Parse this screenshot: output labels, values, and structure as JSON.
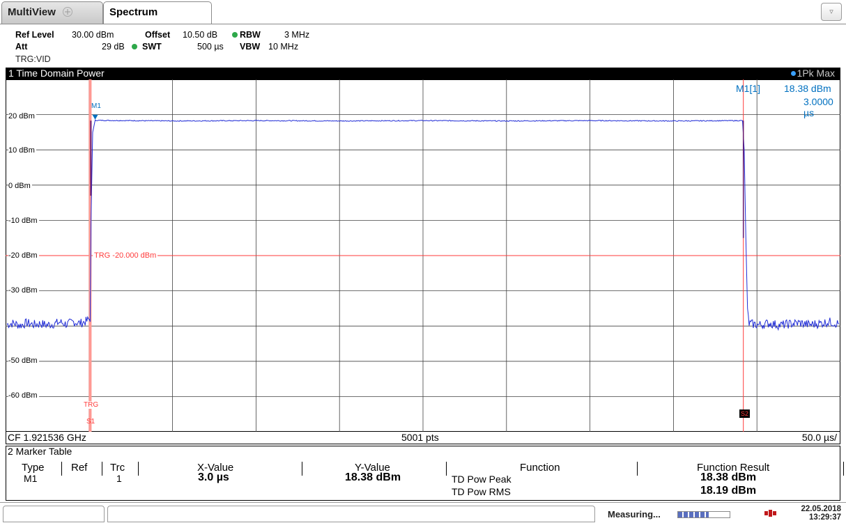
{
  "tabs": [
    {
      "label": "MultiView",
      "icon": "multiview-grid-icon"
    },
    {
      "label": "Spectrum"
    }
  ],
  "dropdown_icon": "triangle-down-icon",
  "settings": {
    "ref_level_label": "Ref Level",
    "ref_level_value": "30.00 dBm",
    "offset_label": "Offset",
    "offset_value": "10.50 dB",
    "rbw_label": "RBW",
    "rbw_value": "3 MHz",
    "att_label": "Att",
    "att_value": "29 dB",
    "swt_label": "SWT",
    "swt_value": "500 µs",
    "vbw_label": "VBW",
    "vbw_value": "10 MHz",
    "trg_label": "TRG:VID"
  },
  "window": {
    "title": "1 Time Domain Power",
    "trace_label": "1Pk Max"
  },
  "marker_readout": {
    "name": "M1[1]",
    "level": "18.38 dBm",
    "time": "3.0000 µs"
  },
  "plot_labels": {
    "m1": "M1",
    "trg_line": "TRG  -20.000 dBm",
    "trg_bottom": "TRG",
    "s1": "S1",
    "s2": "S2"
  },
  "colors": {
    "trace": "#1f2bd6",
    "trigger": "#ff3a3a",
    "marker": "#0070c0",
    "grid": "#404040"
  },
  "chart_data": {
    "type": "line",
    "title": "1 Time Domain Power",
    "xlabel": "",
    "ylabel": "",
    "y_ticks": [
      "20 dBm",
      "10 dBm",
      "0 dBm",
      "-10 dBm",
      "-20 dBm",
      "-30 dBm",
      "-50 dBm",
      "-60 dBm"
    ],
    "ylim": [
      -70,
      30
    ],
    "xlim_us": [
      -50,
      450
    ],
    "x_unit": "µs",
    "grid": true,
    "series": [
      {
        "values_dbm": [
          [
            -50,
            -39.5
          ],
          [
            -46,
            -39.2
          ],
          [
            -42,
            -39.8
          ],
          [
            -38,
            -39.1
          ],
          [
            -34,
            -39.6
          ],
          [
            -30,
            -39.3
          ],
          [
            -26,
            -39.7
          ],
          [
            -22,
            -39.4
          ],
          [
            -18,
            -38.9
          ],
          [
            -14,
            -39.5
          ],
          [
            -10,
            -38.8
          ],
          [
            -6,
            -39.2
          ],
          [
            -2,
            -38.6
          ],
          [
            0,
            -37.8
          ],
          [
            0.5,
            -10
          ],
          [
            1.5,
            15
          ],
          [
            3,
            18.38
          ],
          [
            50,
            18.2
          ],
          [
            100,
            18.3
          ],
          [
            150,
            18.2
          ],
          [
            200,
            18.3
          ],
          [
            250,
            18.2
          ],
          [
            300,
            18.3
          ],
          [
            350,
            18.2
          ],
          [
            392,
            18.3
          ],
          [
            393,
            10
          ],
          [
            394,
            -15
          ],
          [
            395,
            -36
          ],
          [
            396,
            -39.3
          ],
          [
            402,
            -39.7
          ],
          [
            408,
            -39.2
          ],
          [
            414,
            -39.8
          ],
          [
            420,
            -39.4
          ],
          [
            426,
            -39.1
          ],
          [
            432,
            -39.6
          ],
          [
            438,
            -39.3
          ],
          [
            444,
            -38.8
          ],
          [
            450,
            -39.4
          ]
        ]
      }
    ],
    "trigger_level_dbm": -20.0,
    "markers": [
      {
        "name": "M1",
        "x": 3.0,
        "y": 18.38
      }
    ]
  },
  "plot_footer": {
    "center_freq": "CF 1.921536 GHz",
    "points": "5001 pts",
    "span_per_div": "50.0 µs/"
  },
  "marker_table": {
    "title": "2 Marker Table",
    "headers": [
      "Type",
      "Ref",
      "Trc",
      "X-Value",
      "Y-Value",
      "Function",
      "Function Result"
    ],
    "row": {
      "type": "M1",
      "ref": "",
      "trc": "1",
      "x_value": "3.0 µs",
      "y_value": "18.38 dBm",
      "functions": [
        "TD Pow Peak",
        "TD Pow RMS"
      ],
      "results": [
        "18.38 dBm",
        "18.19 dBm"
      ]
    }
  },
  "status": {
    "measuring": "Measuring...",
    "progress": 0.6,
    "date": "22.05.2018",
    "time": "13:29:37"
  }
}
